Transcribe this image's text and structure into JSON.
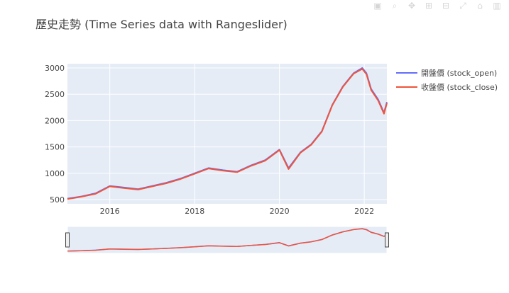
{
  "modebar": {
    "icons": [
      "camera-icon",
      "zoom-icon",
      "pan-icon",
      "zoom-in-icon",
      "zoom-out-icon",
      "autoscale-icon",
      "reset-axes-icon",
      "plotly-logo-icon"
    ]
  },
  "chart_data": {
    "type": "line",
    "title": "歷史走勢 (Time Series data with Rangeslider)",
    "xlabel": "",
    "ylabel": "",
    "x_range": [
      "2015-01-01",
      "2022-07-15"
    ],
    "ylim": [
      420,
      3080
    ],
    "x_tick_labels": [
      "2016",
      "2018",
      "2020",
      "2022"
    ],
    "x_tick_dates": [
      "2016-01-01",
      "2018-01-01",
      "2020-01-01",
      "2022-01-01"
    ],
    "y_ticks": [
      500,
      1000,
      1500,
      2000,
      2500,
      3000
    ],
    "legend_position": "right",
    "grid": true,
    "rangeslider": true,
    "colors": {
      "open": "#636efa",
      "close": "#ef553b",
      "plot_bg": "#e5ecf6",
      "grid": "#ffffff"
    },
    "series": [
      {
        "name": "開盤價 (stock_open)",
        "color": "#636efa",
        "x": [
          "2015-01-01",
          "2015-05-01",
          "2015-09-01",
          "2016-01-01",
          "2016-05-01",
          "2016-09-01",
          "2017-01-01",
          "2017-05-01",
          "2017-09-01",
          "2018-01-01",
          "2018-05-01",
          "2018-09-01",
          "2019-01-01",
          "2019-05-01",
          "2019-09-01",
          "2020-01-01",
          "2020-03-20",
          "2020-07-01",
          "2020-10-01",
          "2021-01-01",
          "2021-04-01",
          "2021-07-01",
          "2021-10-01",
          "2021-12-15",
          "2022-01-20",
          "2022-03-01",
          "2022-05-01",
          "2022-06-20",
          "2022-07-15"
        ],
        "values": [
          520,
          560,
          620,
          760,
          730,
          700,
          760,
          820,
          900,
          1000,
          1100,
          1060,
          1030,
          1150,
          1250,
          1450,
          1100,
          1400,
          1550,
          1800,
          2300,
          2650,
          2900,
          3000,
          2900,
          2600,
          2400,
          2150,
          2350
        ]
      },
      {
        "name": "收盤價 (stock_close)",
        "color": "#ef553b",
        "x": [
          "2015-01-01",
          "2015-05-01",
          "2015-09-01",
          "2016-01-01",
          "2016-05-01",
          "2016-09-01",
          "2017-01-01",
          "2017-05-01",
          "2017-09-01",
          "2018-01-01",
          "2018-05-01",
          "2018-09-01",
          "2019-01-01",
          "2019-05-01",
          "2019-09-01",
          "2020-01-01",
          "2020-03-20",
          "2020-07-01",
          "2020-10-01",
          "2021-01-01",
          "2021-04-01",
          "2021-07-01",
          "2021-10-01",
          "2021-12-15",
          "2022-01-20",
          "2022-03-01",
          "2022-05-01",
          "2022-06-20",
          "2022-07-15"
        ],
        "values": [
          510,
          555,
          610,
          750,
          720,
          690,
          750,
          810,
          890,
          990,
          1090,
          1050,
          1020,
          1140,
          1240,
          1440,
          1080,
          1390,
          1540,
          1790,
          2290,
          2640,
          2890,
          2980,
          2880,
          2580,
          2380,
          2130,
          2330
        ]
      }
    ]
  }
}
